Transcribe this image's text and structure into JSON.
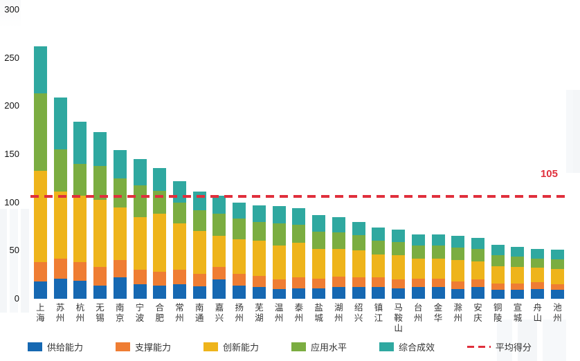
{
  "chart_data": {
    "type": "bar",
    "stacked": true,
    "title": "",
    "xlabel": "",
    "ylabel": "",
    "ylim": [
      0,
      300
    ],
    "yticks": [
      0,
      50,
      100,
      150,
      200,
      250,
      300
    ],
    "grid": false,
    "legend_position": "bottom",
    "categories": [
      "上海",
      "苏州",
      "杭州",
      "无锡",
      "南京",
      "宁波",
      "合肥",
      "常州",
      "南通",
      "嘉兴",
      "扬州",
      "芜湖",
      "温州",
      "泰州",
      "盐城",
      "湖州",
      "绍兴",
      "镇江",
      "马鞍山",
      "台州",
      "金华",
      "滁州",
      "安庆",
      "铜陵",
      "宣城",
      "舟山",
      "池州"
    ],
    "series": [
      {
        "key": "supply",
        "name": "供给能力",
        "color": "#1668b2",
        "values": [
          18,
          21,
          19,
          14,
          22,
          15,
          14,
          15,
          13,
          20,
          14,
          12,
          10,
          11,
          11,
          12,
          12,
          12,
          11,
          12,
          12,
          10,
          12,
          9,
          9,
          10,
          9
        ]
      },
      {
        "key": "support",
        "name": "支撑能力",
        "color": "#ef7d33",
        "values": [
          20,
          21,
          19,
          19,
          18,
          15,
          14,
          15,
          13,
          13,
          12,
          12,
          10,
          11,
          10,
          11,
          10,
          10,
          9,
          9,
          9,
          8,
          8,
          7,
          7,
          7,
          6
        ]
      },
      {
        "key": "innovation",
        "name": "创新能力",
        "color": "#eeb41b",
        "values": [
          95,
          69,
          69,
          70,
          55,
          55,
          60,
          48,
          44,
          32,
          36,
          36,
          35,
          36,
          31,
          29,
          28,
          24,
          25,
          21,
          21,
          22,
          19,
          18,
          17,
          15,
          16
        ]
      },
      {
        "key": "application",
        "name": "应用水平",
        "color": "#7bad41",
        "values": [
          80,
          44,
          33,
          35,
          30,
          33,
          24,
          22,
          22,
          23,
          21,
          20,
          23,
          19,
          18,
          17,
          16,
          14,
          14,
          13,
          13,
          13,
          13,
          11,
          11,
          10,
          10
        ]
      },
      {
        "key": "effectiveness",
        "name": "综合成效",
        "color": "#2fa8a0",
        "values": [
          49,
          54,
          44,
          35,
          29,
          27,
          24,
          22,
          19,
          19,
          17,
          17,
          18,
          17,
          17,
          16,
          14,
          14,
          13,
          12,
          12,
          12,
          11,
          11,
          10,
          10,
          10
        ]
      }
    ],
    "average_line": {
      "label": "平均得分",
      "value": 105,
      "display": "105",
      "color": "#e02f3c"
    }
  }
}
